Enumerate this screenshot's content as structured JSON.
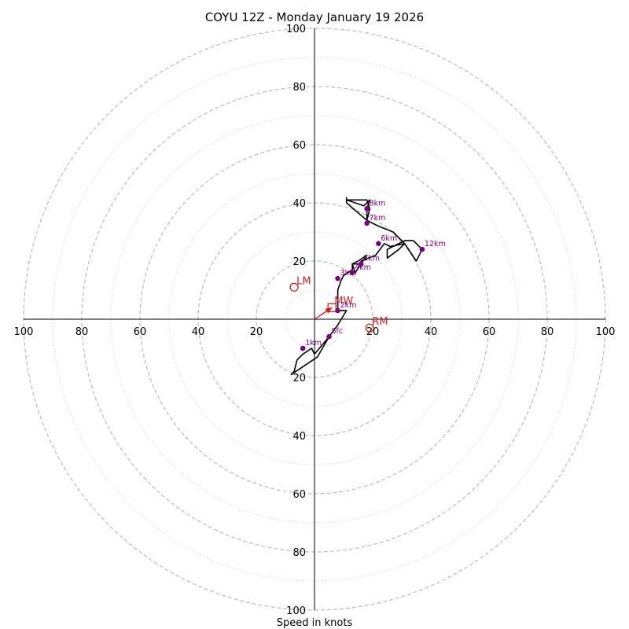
{
  "chart_data": {
    "type": "hodograph",
    "title": "COYU 12Z - Monday January 19 2026",
    "xlabel": "Speed in knots",
    "units": "knots",
    "axis_range": [
      -100,
      100
    ],
    "ring_major_step": 20,
    "ring_minor_step": 10,
    "tick_labels": [
      "100",
      "80",
      "60",
      "40",
      "20",
      "20",
      "40",
      "60",
      "80",
      "100"
    ],
    "x_ticks": [
      -100,
      -80,
      -60,
      -40,
      -20,
      20,
      40,
      60,
      80,
      100
    ],
    "y_ticks": [
      100,
      80,
      60,
      40,
      20,
      -20,
      -40,
      -60,
      -80,
      -100
    ],
    "hodograph_trace": [
      [
        5,
        -6
      ],
      [
        0,
        -12
      ],
      [
        -1,
        -10
      ],
      [
        -4,
        -12
      ],
      [
        -6,
        -14
      ],
      [
        -7,
        -18
      ],
      [
        -8,
        -19
      ],
      [
        1,
        -13
      ],
      [
        5,
        -6
      ],
      [
        8,
        -2
      ],
      [
        11,
        3
      ],
      [
        8,
        3
      ],
      [
        8,
        10
      ],
      [
        9,
        13
      ],
      [
        10,
        15
      ],
      [
        13,
        17
      ],
      [
        13,
        19
      ],
      [
        15,
        20
      ],
      [
        18,
        22
      ],
      [
        14,
        16
      ],
      [
        13,
        19
      ],
      [
        16,
        19
      ],
      [
        16,
        20
      ],
      [
        21,
        22
      ],
      [
        24,
        26
      ],
      [
        26,
        25
      ],
      [
        31,
        26
      ],
      [
        35,
        20
      ],
      [
        37,
        24
      ],
      [
        34,
        27
      ],
      [
        31,
        27
      ],
      [
        25,
        24
      ],
      [
        25,
        21
      ],
      [
        29,
        24
      ],
      [
        31,
        26
      ],
      [
        27,
        30
      ],
      [
        22,
        32
      ],
      [
        18,
        34
      ],
      [
        18,
        36
      ],
      [
        18,
        38
      ],
      [
        19,
        41
      ],
      [
        17,
        39
      ],
      [
        11,
        41
      ],
      [
        11,
        40
      ],
      [
        18,
        34
      ],
      [
        19,
        38
      ],
      [
        18,
        41
      ],
      [
        16,
        41
      ],
      [
        11,
        41
      ],
      [
        11,
        42
      ]
    ],
    "height_markers": [
      {
        "label": "Sfc",
        "u": 5,
        "v": -6
      },
      {
        "label": "1km",
        "u": -4,
        "v": -10
      },
      {
        "label": "2km",
        "u": 8,
        "v": 3
      },
      {
        "label": "3km",
        "u": 8,
        "v": 14
      },
      {
        "label": "4km",
        "u": 13,
        "v": 16
      },
      {
        "label": "5km",
        "u": 16,
        "v": 19
      },
      {
        "label": "6km",
        "u": 22,
        "v": 26
      },
      {
        "label": "7km",
        "u": 18,
        "v": 33
      },
      {
        "label": "8km",
        "u": 18,
        "v": 38
      },
      {
        "label": "12km",
        "u": 37,
        "v": 24
      }
    ],
    "storm_motion": [
      {
        "label": "LM",
        "u": -7,
        "v": 11,
        "marker": "circle"
      },
      {
        "label": "MW",
        "u": 6,
        "v": 4,
        "marker": "square"
      },
      {
        "label": "RM",
        "u": 19,
        "v": -3,
        "marker": "circle"
      }
    ],
    "motion_arrow": {
      "from": [
        0,
        0
      ],
      "to": [
        6,
        4
      ]
    },
    "colors": {
      "trace": "#000000",
      "markers": "#800080",
      "storm_motion": "#cc2222",
      "arrow": "#ff0000",
      "rings": "#bbbbbb"
    }
  }
}
